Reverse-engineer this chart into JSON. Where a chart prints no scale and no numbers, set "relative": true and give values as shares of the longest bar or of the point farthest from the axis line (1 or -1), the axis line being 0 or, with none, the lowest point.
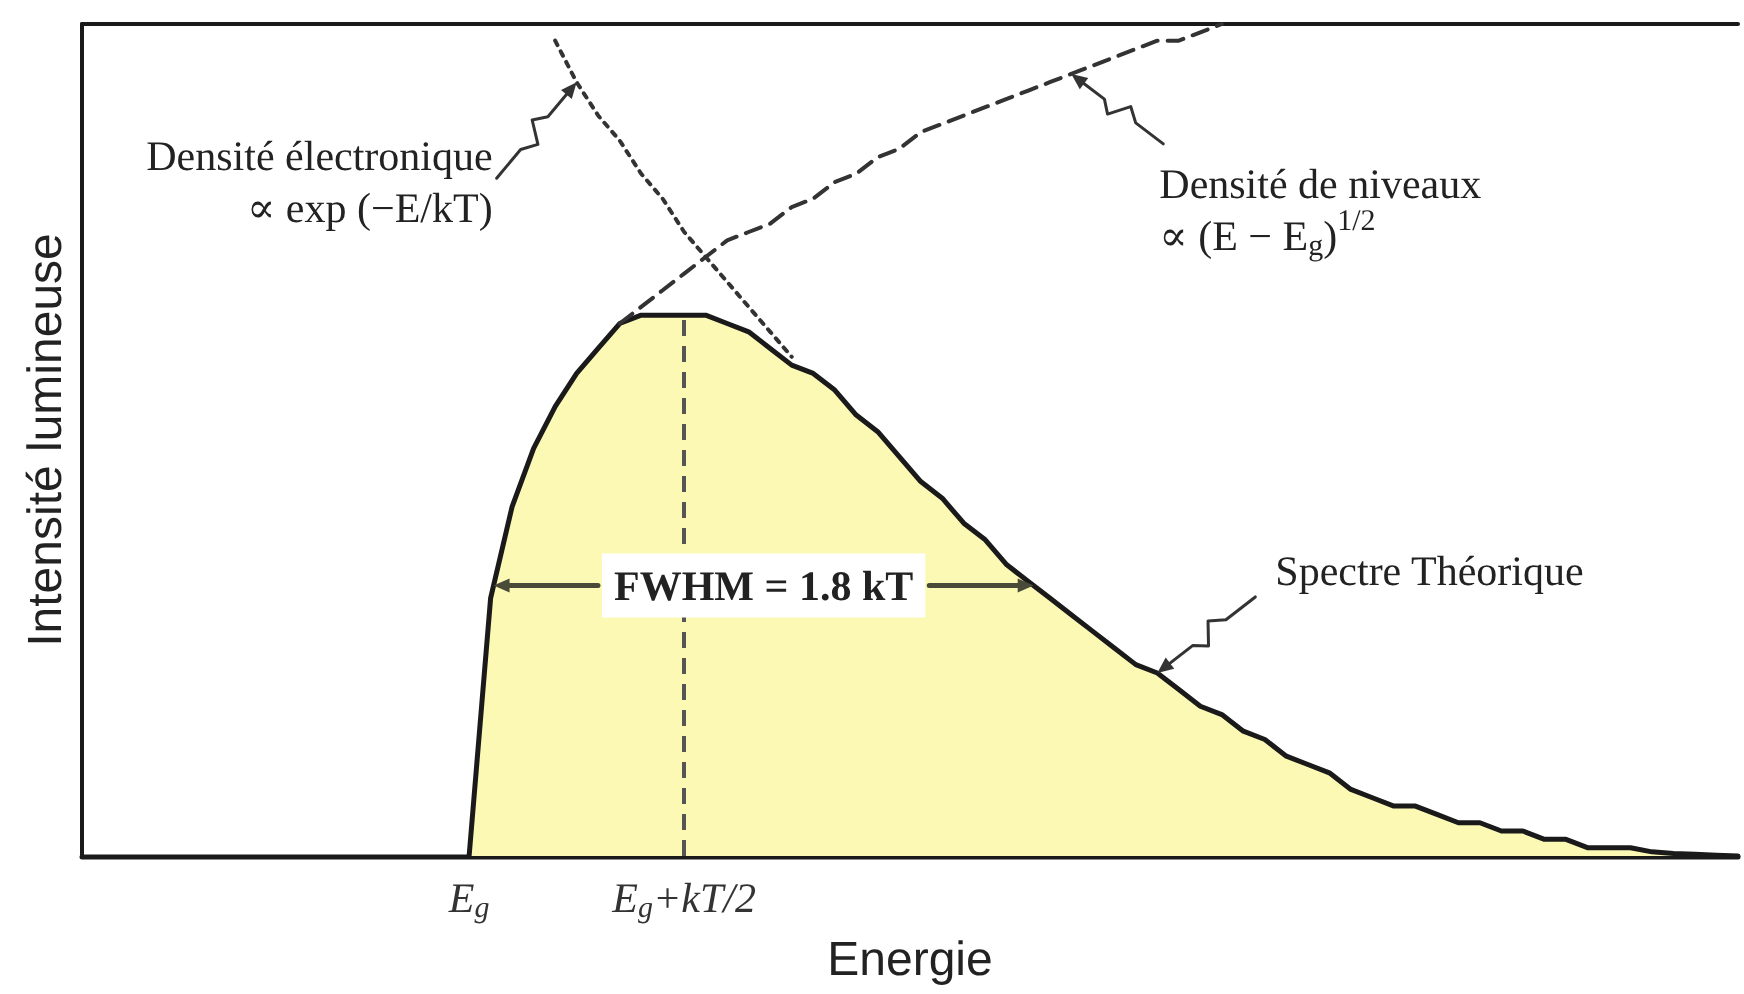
{
  "chart_data": {
    "type": "area",
    "relative": true,
    "xlabel": "Energie",
    "ylabel": "Intensité lumineuse",
    "categories": [
      null,
      null,
      null,
      null,
      null,
      null,
      null,
      null,
      null,
      null,
      null,
      null,
      null,
      null,
      null,
      null,
      null,
      null,
      "E$_{g}$",
      null,
      null,
      null,
      null,
      null,
      null,
      null,
      null,
      null,
      "E$_{g}$+kT/2",
      null,
      null,
      null,
      null,
      null,
      null,
      null,
      null,
      null,
      null,
      null,
      null,
      null,
      null,
      null,
      null,
      null,
      null,
      null,
      null,
      null,
      null,
      null,
      null,
      null,
      null,
      null,
      null,
      null,
      null,
      null,
      null,
      null,
      null,
      null,
      null,
      null,
      null,
      null,
      null,
      null,
      null,
      null,
      null,
      null,
      null,
      null,
      null,
      null
    ],
    "series": [
      {
        "color": "#fcf9b5",
        "values": [
          null,
          null,
          null,
          null,
          null,
          null,
          null,
          null,
          null,
          null,
          null,
          null,
          null,
          null,
          null,
          null,
          null,
          null,
          0,
          0.31,
          0.42,
          0.49,
          0.54,
          0.58,
          0.61,
          0.64,
          0.65,
          0.65,
          0.65,
          0.65,
          0.64,
          0.63,
          0.61,
          0.59,
          0.58,
          0.56,
          0.53,
          0.51,
          0.48,
          0.45,
          0.43,
          0.4,
          0.38,
          0.35,
          0.33,
          0.31,
          0.29,
          0.27,
          0.25,
          0.23,
          0.22,
          0.2,
          0.18,
          0.17,
          0.15,
          0.14,
          0.12,
          0.11,
          0.1,
          0.08,
          0.07,
          0.06,
          0.06,
          0.05,
          0.04,
          0.04,
          0.03,
          0.03,
          0.02,
          0.02,
          0.01,
          0.01,
          0.01,
          0.005,
          0.003,
          0.002,
          0.001,
          0
        ]
      },
      {
        "type": "line",
        "color": "#333333",
        "line_style": "dashed",
        "values": [
          null,
          null,
          null,
          null,
          null,
          null,
          null,
          null,
          null,
          null,
          null,
          null,
          null,
          null,
          null,
          null,
          null,
          null,
          null,
          null,
          null,
          null,
          null,
          null,
          null,
          0.64,
          0.66,
          0.68,
          0.7,
          0.72,
          0.74,
          0.75,
          0.76,
          0.78,
          0.79,
          0.81,
          0.82,
          0.84,
          0.85,
          0.87,
          0.88,
          0.89,
          0.9,
          0.91,
          0.92,
          0.93,
          0.94,
          0.95,
          0.96,
          0.97,
          0.98,
          0.98,
          0.99,
          1,
          null,
          null,
          null,
          null,
          null,
          null,
          null,
          null,
          null,
          null,
          null,
          null,
          null,
          null,
          null,
          null,
          null,
          null,
          null,
          null,
          null,
          null,
          null,
          null
        ]
      },
      {
        "type": "line",
        "color": "#333333",
        "line_style": "dotted",
        "values": [
          null,
          null,
          null,
          null,
          null,
          null,
          null,
          null,
          null,
          null,
          null,
          null,
          null,
          null,
          null,
          null,
          null,
          null,
          null,
          null,
          null,
          null,
          0.98,
          0.93,
          0.89,
          0.86,
          0.82,
          0.79,
          0.75,
          0.72,
          0.69,
          0.66,
          0.63,
          0.6,
          null,
          null,
          null,
          null,
          null,
          null,
          null,
          null,
          null,
          null,
          null,
          null,
          null,
          null,
          null,
          null,
          null,
          null,
          null,
          null,
          null,
          null,
          null,
          null,
          null,
          null,
          null,
          null,
          null,
          null,
          null,
          null,
          null,
          null,
          null,
          null,
          null,
          null,
          null,
          null,
          null,
          null,
          null,
          null
        ]
      }
    ],
    "ref_lines": [
      {
        "axis": "x",
        "value": "E$_{g}$+kT/2",
        "line_style": "dashed",
        "color": "#555555"
      }
    ],
    "annotations": [
      "Densité électronique\n∝ exp (−E/kT)",
      "Densité de niveaux\n∝ (E − E$_{g}$)$^{1/2}$",
      "Spectre Théorique",
      "FWHM = 1.8 kT"
    ]
  }
}
